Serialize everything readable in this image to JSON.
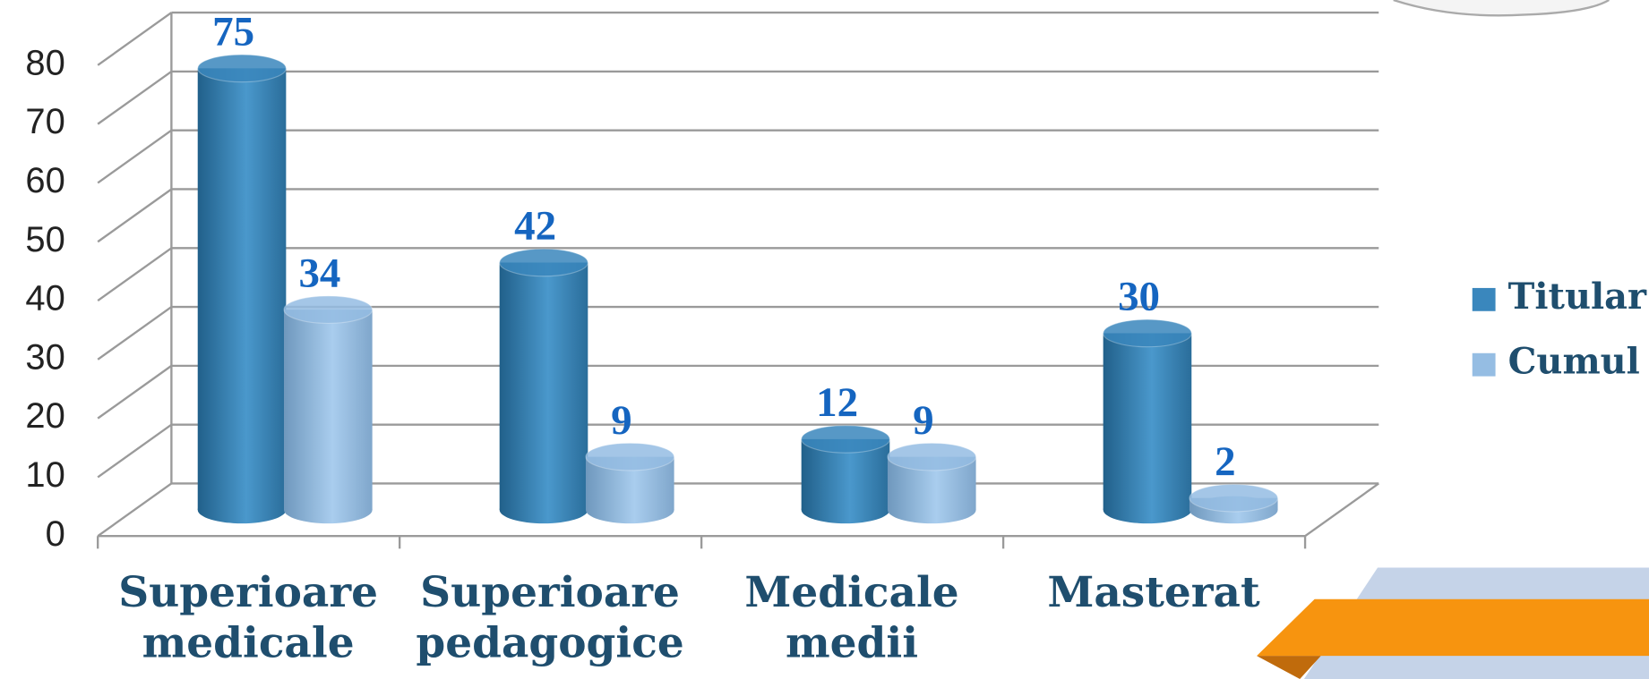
{
  "chart_data": {
    "type": "bar3d",
    "categories": [
      "Superioare medicale",
      "Superioare pedagogice",
      "Medicale medii",
      "Masterat"
    ],
    "series": [
      {
        "name": "Titular",
        "color": "#3a87bd",
        "values": [
          75,
          42,
          12,
          30
        ]
      },
      {
        "name": "Cumul",
        "color": "#95bde3",
        "values": [
          34,
          9,
          9,
          2
        ]
      }
    ],
    "ylim": [
      0,
      80
    ],
    "yticks": [
      0,
      10,
      20,
      30,
      40,
      50,
      60,
      70,
      80
    ],
    "grid": true,
    "legend": "right"
  }
}
